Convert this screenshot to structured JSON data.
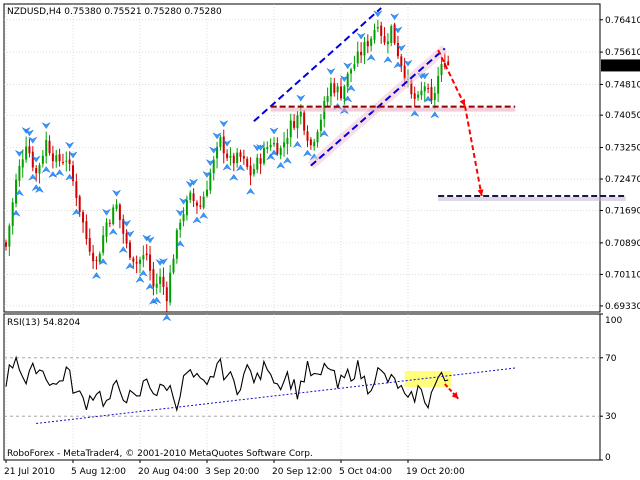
{
  "header": {
    "price_title": "NZDUSD,H4  0.75380 0.75521 0.75280 0.75280",
    "rsi_title": "RSI(13) 54.8204",
    "copyright": "RoboForex - MetaTrader4, © 2001-2010 MetaQuotes Software Corp."
  },
  "colors": {
    "bull": "#00a000",
    "bear": "#d00000",
    "fractal": "#3399ff",
    "channel": "#0000dd",
    "level": "#8b0000",
    "arrow": "#ff0000",
    "highlight": "#ffff66",
    "trend": "#1010cc"
  },
  "chart_data": [
    {
      "type": "candlestick",
      "symbol": "NZDUSD",
      "timeframe": "H4",
      "last_ohlc": {
        "open": 0.7538,
        "high": 0.75521,
        "low": 0.7528,
        "close": 0.7528
      },
      "ylim": [
        0.6918,
        0.768
      ],
      "yticks": [
        "0.76410",
        "0.75610",
        "0.74810",
        "0.74050",
        "0.73250",
        "0.72470",
        "0.71690",
        "0.70890",
        "0.70110",
        "0.69330"
      ],
      "current_price_label": "0.75280",
      "current_price": 0.7528,
      "xticks": [
        "21 Jul 2010",
        "5 Aug 12:00",
        "20 Aug 04:00",
        "3 Sep 20:00",
        "20 Sep 12:00",
        "5 Oct 04:00",
        "19 Oct 20:00"
      ],
      "xtick_bars": [
        0,
        20,
        40,
        60,
        80,
        100,
        120
      ],
      "bar_count": 133,
      "close_path": [
        [
          0,
          0.708
        ],
        [
          3,
          0.724
        ],
        [
          6,
          0.734
        ],
        [
          9,
          0.726
        ],
        [
          12,
          0.734
        ],
        [
          15,
          0.729
        ],
        [
          18,
          0.73
        ],
        [
          21,
          0.721
        ],
        [
          24,
          0.71
        ],
        [
          27,
          0.704
        ],
        [
          30,
          0.714
        ],
        [
          33,
          0.718
        ],
        [
          36,
          0.708
        ],
        [
          39,
          0.704
        ],
        [
          42,
          0.706
        ],
        [
          44,
          0.698
        ],
        [
          46,
          0.7
        ],
        [
          48,
          0.696
        ],
        [
          50,
          0.706
        ],
        [
          52,
          0.715
        ],
        [
          55,
          0.72
        ],
        [
          58,
          0.718
        ],
        [
          61,
          0.726
        ],
        [
          64,
          0.734
        ],
        [
          67,
          0.729
        ],
        [
          70,
          0.73
        ],
        [
          73,
          0.726
        ],
        [
          76,
          0.73
        ],
        [
          79,
          0.734
        ],
        [
          82,
          0.732
        ],
        [
          85,
          0.738
        ],
        [
          88,
          0.741
        ],
        [
          91,
          0.733
        ],
        [
          94,
          0.74
        ],
        [
          97,
          0.748
        ],
        [
          100,
          0.746
        ],
        [
          103,
          0.752
        ],
        [
          106,
          0.756
        ],
        [
          109,
          0.76
        ],
        [
          111,
          0.764
        ],
        [
          113,
          0.758
        ],
        [
          115,
          0.762
        ],
        [
          117,
          0.756
        ],
        [
          119,
          0.751
        ],
        [
          121,
          0.745
        ],
        [
          123,
          0.744
        ],
        [
          125,
          0.748
        ],
        [
          127,
          0.743
        ],
        [
          129,
          0.75
        ],
        [
          131,
          0.754
        ],
        [
          132,
          0.7528
        ]
      ],
      "annotations": {
        "channel_upper": [
          [
            74,
            0.739
          ],
          [
            112,
            0.767
          ]
        ],
        "channel_lower": [
          [
            91,
            0.728
          ],
          [
            131,
            0.757
          ]
        ],
        "support_level": {
          "y": 0.7426,
          "x": [
            79,
            152
          ]
        },
        "target_level": {
          "y": 0.7205,
          "x": [
            129,
            185
          ]
        },
        "forecast_arrow": [
          [
            129,
            0.7566
          ],
          [
            137,
            0.7428
          ],
          [
            142,
            0.7205
          ]
        ]
      }
    },
    {
      "type": "line",
      "name": "RSI(13)",
      "value": 54.8204,
      "ylim": [
        0,
        100
      ],
      "yticks": [
        "100",
        "70",
        "30",
        "0"
      ],
      "levels": [
        70,
        30
      ],
      "x": [
        0,
        3,
        6,
        9,
        12,
        15,
        18,
        21,
        24,
        27,
        30,
        33,
        36,
        39,
        42,
        45,
        48,
        51,
        54,
        57,
        60,
        63,
        66,
        69,
        72,
        75,
        78,
        81,
        84,
        87,
        90,
        93,
        96,
        99,
        102,
        105,
        108,
        111,
        114,
        117,
        120,
        123,
        126,
        129,
        132
      ],
      "values": [
        55,
        72,
        52,
        65,
        58,
        50,
        62,
        45,
        40,
        48,
        38,
        50,
        44,
        40,
        56,
        45,
        52,
        40,
        60,
        54,
        48,
        66,
        58,
        50,
        62,
        54,
        67,
        52,
        58,
        47,
        62,
        54,
        66,
        50,
        58,
        63,
        50,
        60,
        55,
        52,
        38,
        48,
        40,
        56,
        54
      ],
      "trendline": [
        [
          9,
          25.0
        ],
        [
          152,
          63.0
        ]
      ],
      "highlight_zone": {
        "x": [
          119,
          133
        ],
        "y_range": [
          50,
          61
        ]
      },
      "arrow": [
        [
          131,
          52
        ],
        [
          135,
          42
        ]
      ]
    }
  ]
}
